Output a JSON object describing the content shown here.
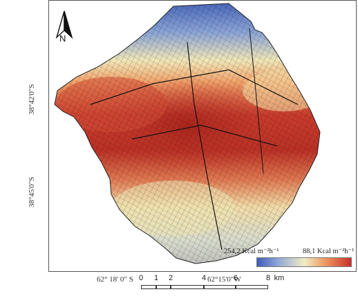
{
  "map": {
    "lat_labels": [
      "38°42'0\"S",
      "38°45'0\"S"
    ],
    "lon_labels": [
      "62° 18' 0\" S",
      "62°15'0\"W"
    ],
    "north_arrow": {
      "icon": "north-arrow-icon",
      "letter": "N"
    },
    "legend": {
      "min_label": "254,2 Kcal m⁻²h⁻¹",
      "max_label": "88,1 Kcal m⁻²h⁻¹",
      "colors": [
        "#3f5db8",
        "#8fa6d8",
        "#f2ecc4",
        "#ee9a63",
        "#c9302a"
      ]
    },
    "scale_bar": {
      "ticks": [
        "0",
        "1",
        "2",
        "4",
        "6",
        "8"
      ],
      "unit": "km"
    }
  }
}
